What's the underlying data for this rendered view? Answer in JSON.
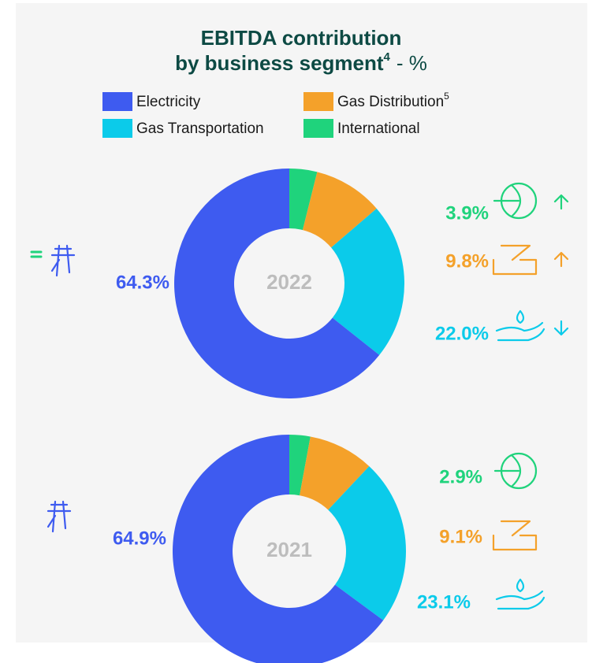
{
  "title_line1": "EBITDA contribution",
  "title_line2": "by business segment",
  "title_note": "4",
  "title_suffix": "- %",
  "gas_distribution_note": "5",
  "chart_data": [
    {
      "type": "pie",
      "center_label": "2022",
      "categories": [
        "International",
        "Gas Distribution",
        "Gas Transportation",
        "Electricity"
      ],
      "values": [
        3.9,
        9.8,
        22.0,
        64.3
      ],
      "value_labels": [
        "3.9%",
        "9.8%",
        "22.0%",
        "64.3%"
      ],
      "colors": [
        "#1fd37c",
        "#f4a12a",
        "#0bcbea",
        "#3e5bf0"
      ]
    },
    {
      "type": "pie",
      "center_label": "2021",
      "categories": [
        "International",
        "Gas Distribution",
        "Gas Transportation",
        "Electricity"
      ],
      "values": [
        2.9,
        9.1,
        23.1,
        64.9
      ],
      "value_labels": [
        "2.9%",
        "9.1%",
        "23.1%",
        "64.9%"
      ],
      "colors": [
        "#1fd37c",
        "#f4a12a",
        "#0bcbea",
        "#3e5bf0"
      ]
    }
  ]
}
